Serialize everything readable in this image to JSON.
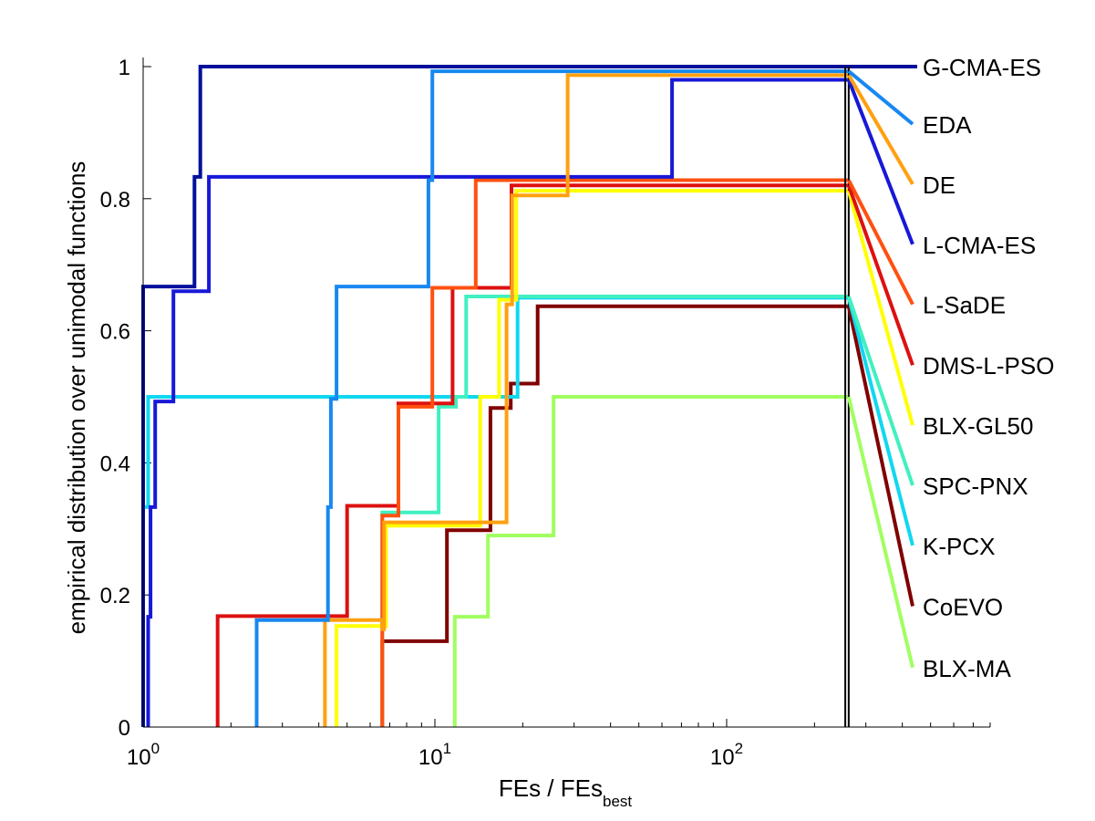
{
  "chart_data": {
    "type": "line",
    "step": true,
    "xscale": "log",
    "xlim": [
      1,
      800
    ],
    "ylim": [
      0,
      1
    ],
    "xlabel": "FEs / FEs",
    "xlabel_sub": "best",
    "ylabel": "empirical distribution over unimodal functions",
    "x_tick_base": "10",
    "x_ticks": [
      {
        "value": 1,
        "exp": "0"
      },
      {
        "value": 10,
        "exp": "1"
      },
      {
        "value": 100,
        "exp": "2"
      }
    ],
    "y_ticks": [
      {
        "value": 0,
        "label": "0"
      },
      {
        "value": 0.2,
        "label": "0.2"
      },
      {
        "value": 0.4,
        "label": "0.4"
      },
      {
        "value": 0.6,
        "label": "0.6"
      },
      {
        "value": 0.8,
        "label": "0.8"
      },
      {
        "value": 1,
        "label": "1"
      }
    ],
    "grid": false,
    "legend_position": "right",
    "vlines": [
      255,
      262
    ],
    "series": [
      {
        "name": "BLX-MA",
        "color": "#a0ff60",
        "end_y": 0.09,
        "points": [
          [
            11.7,
            0
          ],
          [
            11.7,
            0.167
          ],
          [
            15.2,
            0.167
          ],
          [
            15.2,
            0.29
          ],
          [
            25.5,
            0.29
          ],
          [
            25.5,
            0.5
          ],
          [
            260,
            0.5
          ]
        ]
      },
      {
        "name": "CoEVO",
        "color": "#800000",
        "end_y": 0.183,
        "points": [
          [
            6.6,
            0
          ],
          [
            6.6,
            0.13
          ],
          [
            11,
            0.13
          ],
          [
            11,
            0.298
          ],
          [
            15.5,
            0.298
          ],
          [
            15.5,
            0.483
          ],
          [
            18.2,
            0.483
          ],
          [
            18.2,
            0.52
          ],
          [
            22.5,
            0.52
          ],
          [
            22.5,
            0.637
          ],
          [
            260,
            0.637
          ]
        ]
      },
      {
        "name": "K-PCX",
        "color": "#10d8f0",
        "end_y": 0.275,
        "points": [
          [
            1,
            0
          ],
          [
            1,
            0.333
          ],
          [
            1.04,
            0.333
          ],
          [
            1.04,
            0.5
          ],
          [
            19.2,
            0.5
          ],
          [
            19.2,
            0.65
          ],
          [
            260,
            0.65
          ]
        ]
      },
      {
        "name": "SPC-PNX",
        "color": "#40f0c0",
        "end_y": 0.366,
        "points": [
          [
            6.6,
            0
          ],
          [
            6.6,
            0.325
          ],
          [
            10.3,
            0.325
          ],
          [
            10.3,
            0.485
          ],
          [
            11.8,
            0.485
          ],
          [
            11.8,
            0.5
          ],
          [
            12.8,
            0.5
          ],
          [
            12.8,
            0.652
          ],
          [
            260,
            0.652
          ]
        ]
      },
      {
        "name": "BLX-GL50",
        "color": "#ffff00",
        "end_y": 0.457,
        "points": [
          [
            4.6,
            0
          ],
          [
            4.6,
            0.153
          ],
          [
            6.8,
            0.153
          ],
          [
            6.8,
            0.305
          ],
          [
            14.3,
            0.305
          ],
          [
            14.3,
            0.5
          ],
          [
            16.6,
            0.5
          ],
          [
            16.6,
            0.647
          ],
          [
            19,
            0.647
          ],
          [
            19,
            0.812
          ],
          [
            260,
            0.812
          ]
        ]
      },
      {
        "name": "DMS-L-PSO",
        "color": "#dd1010",
        "end_y": 0.548,
        "points": [
          [
            1.8,
            0
          ],
          [
            1.8,
            0.168
          ],
          [
            5,
            0.168
          ],
          [
            5,
            0.335
          ],
          [
            7.5,
            0.335
          ],
          [
            7.5,
            0.49
          ],
          [
            11.5,
            0.49
          ],
          [
            11.5,
            0.665
          ],
          [
            18.3,
            0.665
          ],
          [
            18.3,
            0.82
          ],
          [
            260,
            0.82
          ]
        ]
      },
      {
        "name": "L-SaDE",
        "color": "#ff5010",
        "end_y": 0.64,
        "points": [
          [
            6.6,
            0
          ],
          [
            6.6,
            0.32
          ],
          [
            7.5,
            0.32
          ],
          [
            7.5,
            0.485
          ],
          [
            9.8,
            0.485
          ],
          [
            9.8,
            0.665
          ],
          [
            13.8,
            0.665
          ],
          [
            13.8,
            0.828
          ],
          [
            260,
            0.828
          ]
        ]
      },
      {
        "name": "L-CMA-ES",
        "color": "#1818d8",
        "end_y": 0.731,
        "points": [
          [
            1.04,
            0
          ],
          [
            1.04,
            0.167
          ],
          [
            1.06,
            0.167
          ],
          [
            1.06,
            0.333
          ],
          [
            1.1,
            0.333
          ],
          [
            1.1,
            0.493
          ],
          [
            1.27,
            0.493
          ],
          [
            1.27,
            0.66
          ],
          [
            1.68,
            0.66
          ],
          [
            1.68,
            0.833
          ],
          [
            65,
            0.833
          ],
          [
            65,
            0.98
          ],
          [
            260,
            0.98
          ]
        ]
      },
      {
        "name": "DE",
        "color": "#ffa010",
        "end_y": 0.822,
        "points": [
          [
            4.2,
            0
          ],
          [
            4.2,
            0.162
          ],
          [
            6.6,
            0.162
          ],
          [
            6.6,
            0.148
          ],
          [
            6.7,
            0.148
          ],
          [
            6.7,
            0.31
          ],
          [
            17.6,
            0.31
          ],
          [
            17.6,
            0.64
          ],
          [
            18.4,
            0.64
          ],
          [
            18.4,
            0.805
          ],
          [
            28.5,
            0.805
          ],
          [
            28.5,
            0.987
          ],
          [
            260,
            0.987
          ]
        ]
      },
      {
        "name": "EDA",
        "color": "#1888f0",
        "end_y": 0.913,
        "points": [
          [
            2.45,
            0
          ],
          [
            2.45,
            0.162
          ],
          [
            4.3,
            0.162
          ],
          [
            4.3,
            0.333
          ],
          [
            4.4,
            0.333
          ],
          [
            4.4,
            0.497
          ],
          [
            4.6,
            0.497
          ],
          [
            4.6,
            0.667
          ],
          [
            9.5,
            0.667
          ],
          [
            9.5,
            0.828
          ],
          [
            9.8,
            0.828
          ],
          [
            9.8,
            0.993
          ],
          [
            260,
            0.993
          ]
        ]
      },
      {
        "name": "G-CMA-ES",
        "color": "#00109a",
        "end_y": 1.0,
        "points": [
          [
            1,
            0
          ],
          [
            1,
            0.667
          ],
          [
            1.5,
            0.667
          ],
          [
            1.5,
            0.833
          ],
          [
            1.57,
            0.833
          ],
          [
            1.57,
            1
          ],
          [
            450,
            1
          ]
        ]
      }
    ]
  }
}
